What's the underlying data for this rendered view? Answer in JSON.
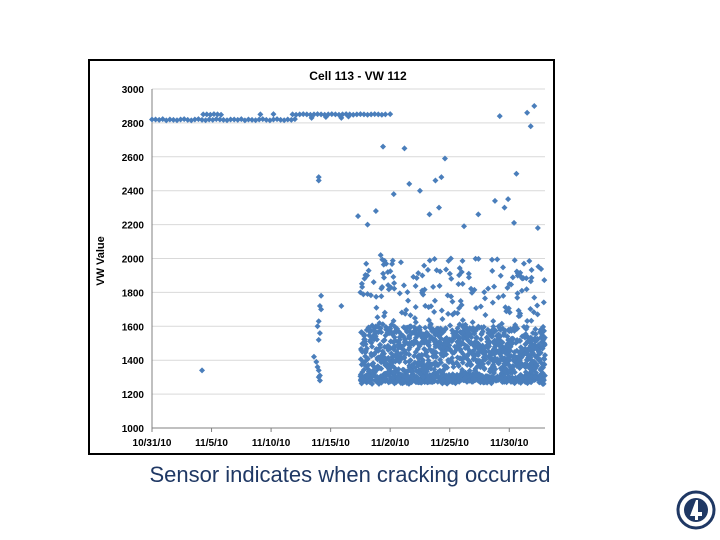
{
  "slide": {
    "caption": "Sensor indicates when cracking occurred"
  },
  "colors": {
    "marker": "#4a7ebb",
    "frame": "#000000",
    "grid": "#d9d9d9",
    "caption": "#1f3864"
  },
  "chart_data": {
    "type": "scatter",
    "title": "Cell 113 - VW 112",
    "xlabel": "",
    "ylabel": "VW Value",
    "x_tick_labels": [
      "10/31/10",
      "11/5/10",
      "11/10/10",
      "11/15/10",
      "11/20/10",
      "11/25/10",
      "11/30/10"
    ],
    "y_tick_labels": [
      "1000",
      "1200",
      "1400",
      "1600",
      "1800",
      "2000",
      "2200",
      "2400",
      "2600",
      "2800",
      "3000"
    ],
    "xlim_days": [
      0,
      33
    ],
    "ylim": [
      1000,
      3000
    ],
    "grid": "horizontal",
    "legend": "none",
    "series": [
      {
        "x_day": [
          0.0,
          0.3,
          0.6,
          0.9,
          1.2,
          1.5,
          1.8,
          2.1,
          2.4,
          2.7,
          3.0,
          3.3,
          3.6,
          3.9,
          4.2,
          4.5,
          4.8,
          5.1,
          5.4,
          5.7,
          6.0,
          6.3,
          6.6,
          6.9,
          7.2,
          7.5,
          7.8,
          8.1,
          8.4,
          8.7,
          9.0,
          9.3,
          9.6,
          9.9,
          10.2,
          10.5,
          10.8,
          11.1,
          11.4,
          11.7,
          12.0,
          4.3,
          4.6,
          4.9,
          5.2,
          5.5,
          5.8,
          9.1,
          10.2,
          11.8,
          12.1,
          12.4,
          12.7,
          13.0,
          13.3,
          13.6,
          13.9,
          14.2,
          14.5,
          14.8,
          15.1,
          15.4,
          15.7,
          16.0,
          16.3,
          16.6,
          16.9,
          17.2,
          17.5,
          17.8,
          18.1,
          18.4,
          18.7,
          19.0,
          19.3,
          19.6,
          20.0,
          13.4,
          14.6,
          15.9,
          16.5,
          4.2,
          13.6,
          13.8,
          13.9,
          14.0,
          14.1,
          14.0,
          14.1,
          13.9,
          14.0,
          14.1,
          14.2,
          14.0,
          14.0,
          14.1,
          14.2,
          14.0,
          15.9,
          17.3,
          17.5,
          18.1,
          18.8,
          19.2,
          19.4,
          20.3,
          21.2,
          21.6,
          22.5,
          22.7,
          23.3,
          23.8,
          24.1,
          24.3,
          24.6,
          25.1,
          26.2,
          26.6,
          27.4,
          28.8,
          29.2,
          29.6,
          29.9,
          30.4,
          30.6,
          31.5,
          31.8,
          32.1,
          32.4
        ],
        "y": [
          2820,
          2820,
          2818,
          2822,
          2815,
          2820,
          2818,
          2816,
          2820,
          2822,
          2818,
          2815,
          2820,
          2822,
          2818,
          2816,
          2820,
          2818,
          2822,
          2820,
          2818,
          2816,
          2820,
          2820,
          2818,
          2822,
          2815,
          2820,
          2818,
          2816,
          2820,
          2822,
          2818,
          2815,
          2820,
          2822,
          2818,
          2816,
          2820,
          2818,
          2822,
          2850,
          2850,
          2848,
          2852,
          2850,
          2848,
          2850,
          2852,
          2850,
          2848,
          2850,
          2852,
          2850,
          2848,
          2850,
          2852,
          2850,
          2848,
          2850,
          2852,
          2850,
          2848,
          2850,
          2852,
          2850,
          2848,
          2850,
          2852,
          2850,
          2848,
          2850,
          2852,
          2850,
          2848,
          2850,
          2852,
          2830,
          2835,
          2830,
          2838,
          1340,
          1420,
          1390,
          1360,
          1340,
          1310,
          1300,
          1280,
          1600,
          1630,
          1720,
          1780,
          2460,
          2480,
          1560,
          1700,
          1520,
          1720,
          2250,
          1800,
          2200,
          2280,
          2020,
          2660,
          2380,
          2650,
          2440,
          2400,
          1900,
          2260,
          2460,
          2300,
          2480,
          2590,
          2000,
          2190,
          1910,
          2260,
          2340,
          2840,
          2300,
          2350,
          2210,
          2500,
          2860,
          2780,
          2900,
          2180
        ],
        "noise_start_day": 17.5,
        "noise_end_day": 33,
        "noise_y_range": [
          1260,
          2000
        ],
        "noise_density": "dense between 1260 and 1600"
      }
    ]
  }
}
